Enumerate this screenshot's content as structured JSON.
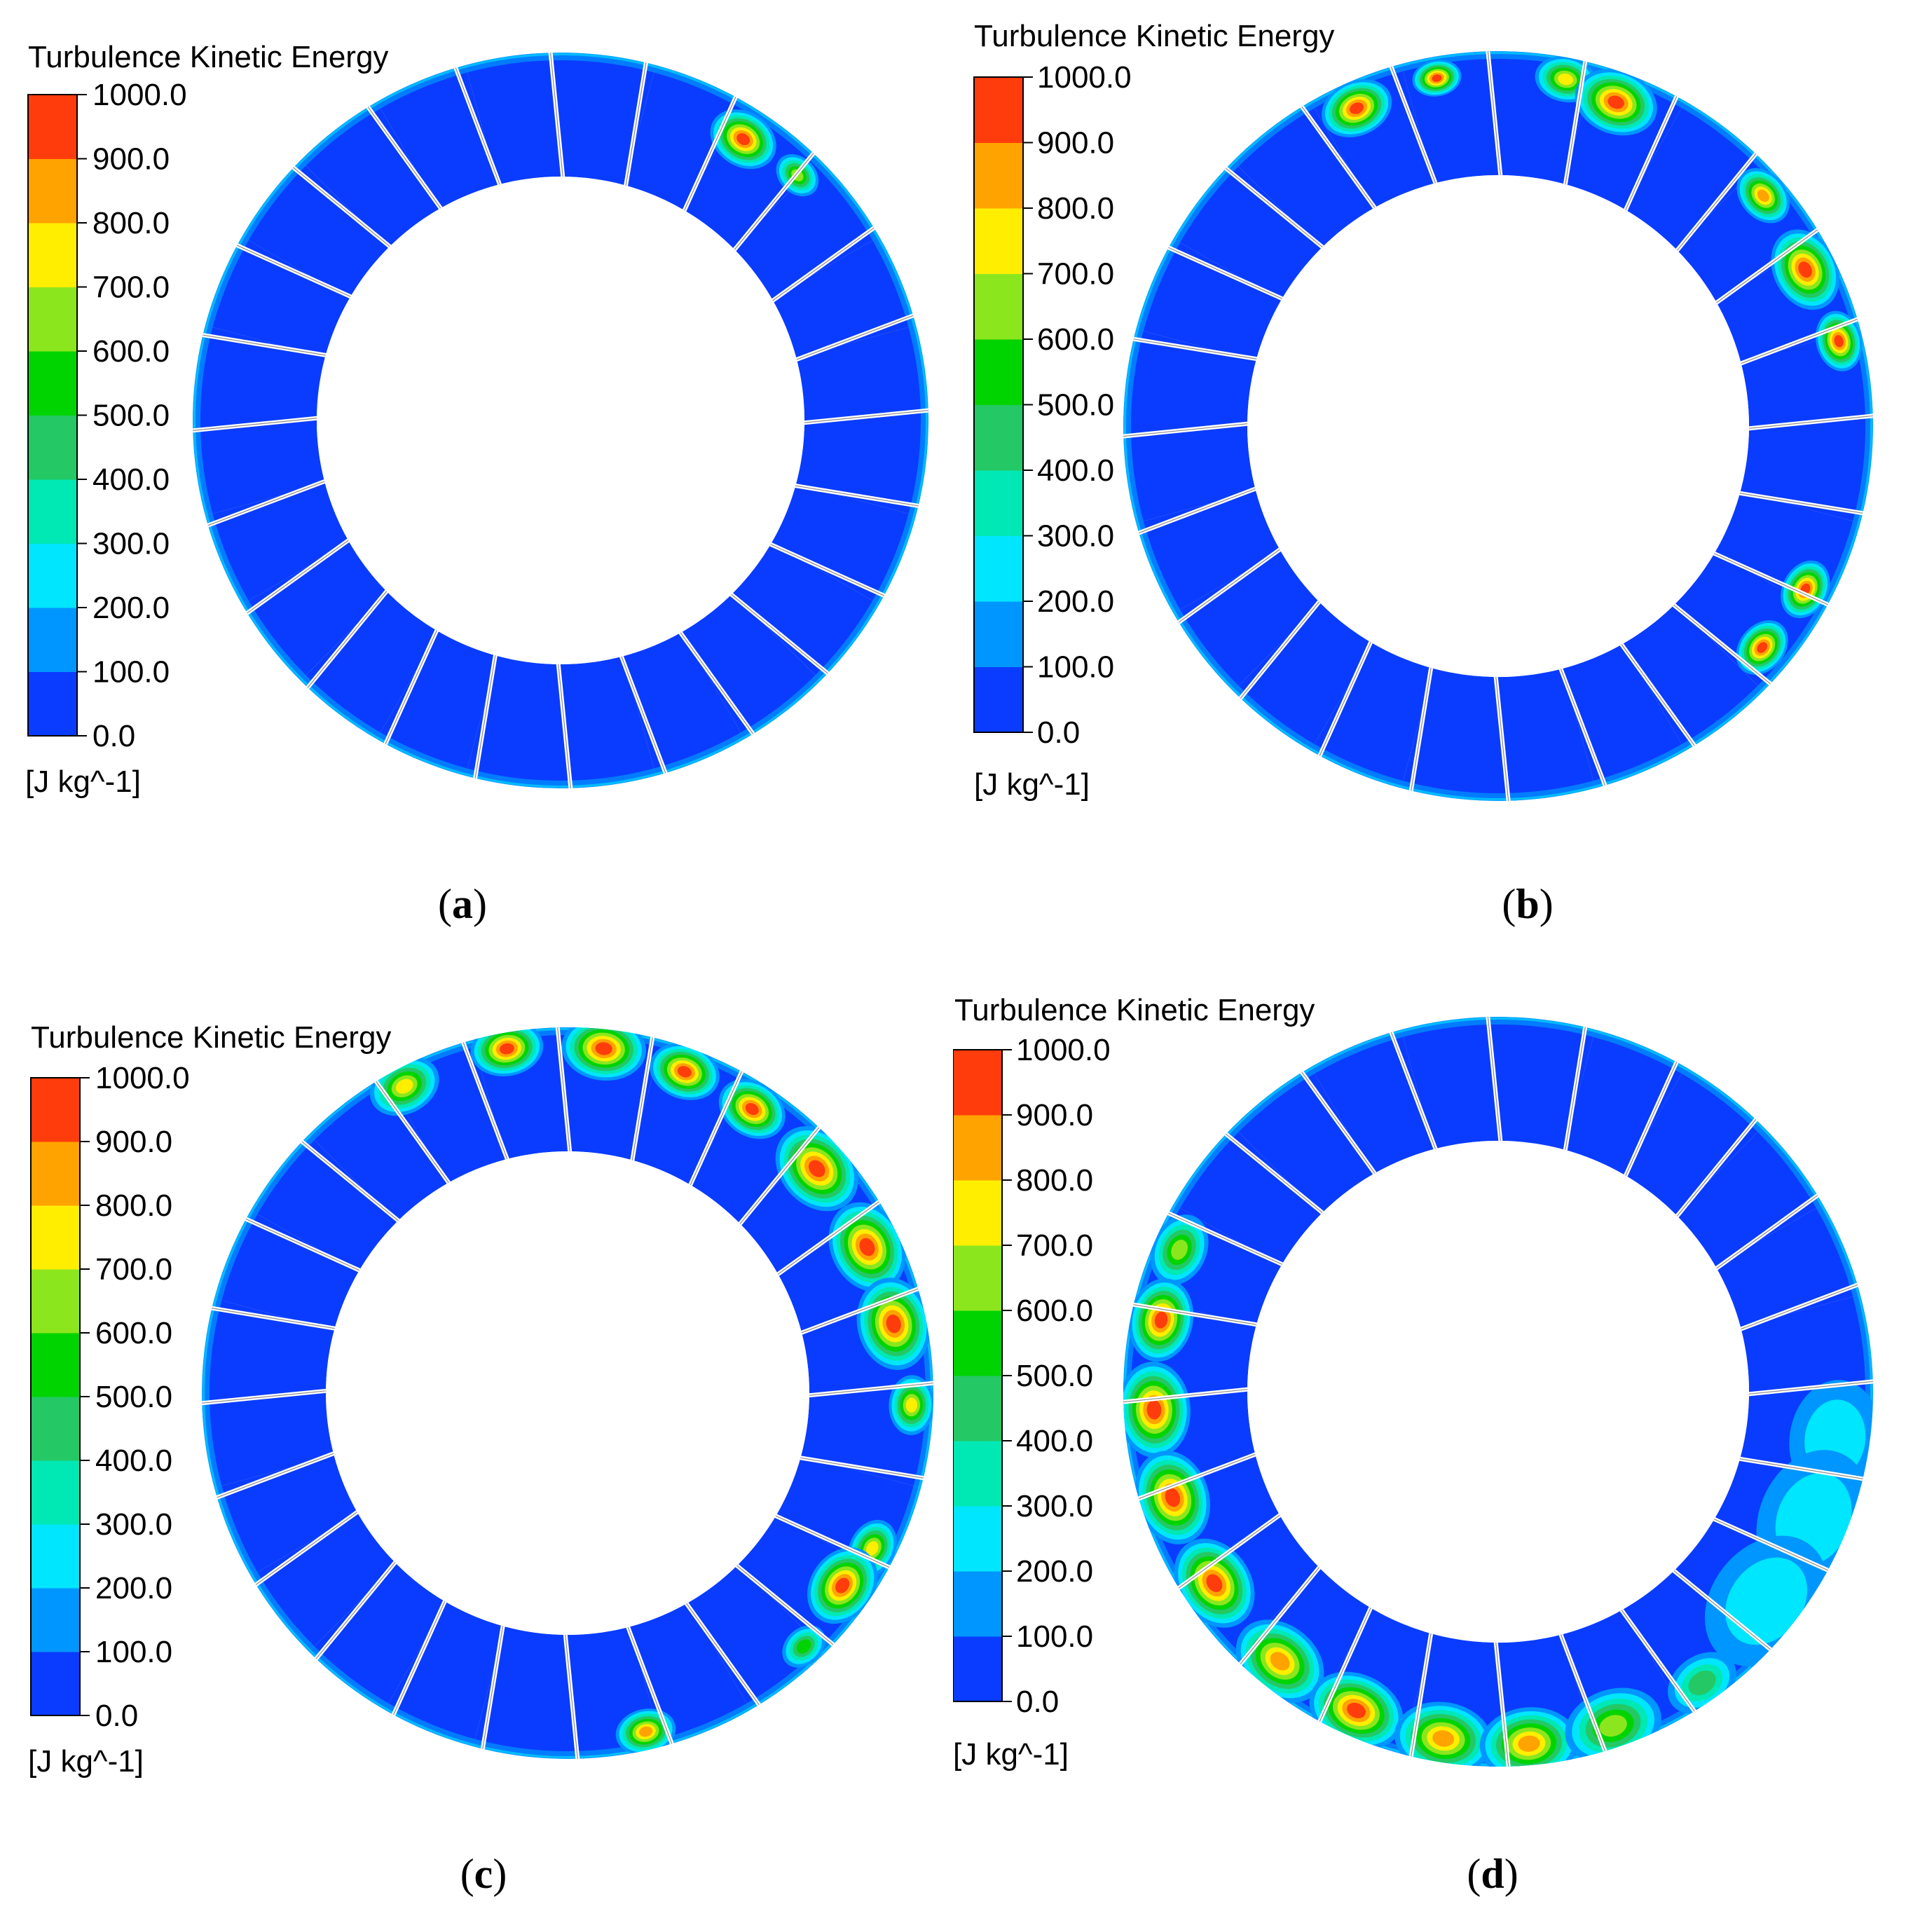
{
  "figure": {
    "colors": {
      "bands": [
        "#0a3cff",
        "#0096ff",
        "#00e6ff",
        "#00e8b4",
        "#24c864",
        "#00d400",
        "#8ce61e",
        "#ffee00",
        "#ffa300",
        "#ff3c0c"
      ],
      "low": "#0a3cff",
      "background": "#ffffff",
      "gap": "#ffffff"
    }
  },
  "chart_data": [
    {
      "type": "heatmap",
      "panel": "a",
      "caption_open": "(",
      "caption_letter": "a",
      "caption_close": ")",
      "title": "Turbulence Kinetic Energy",
      "units": "[J kg^-1]",
      "range": [
        0,
        1000
      ],
      "tick_labels": [
        "1000.0",
        "900.0",
        "800.0",
        "700.0",
        "600.0",
        "500.0",
        "400.0",
        "300.0",
        "200.0",
        "100.0",
        "0.0"
      ],
      "passages": 24,
      "hotspots": [
        {
          "angle_deg": 33,
          "radius_frac": 0.8,
          "peak": 1000,
          "spread_deg": 6
        },
        {
          "angle_deg": 44,
          "radius_frac": 0.85,
          "peak": 650,
          "spread_deg": 4
        }
      ]
    },
    {
      "type": "heatmap",
      "panel": "b",
      "caption_open": "(",
      "caption_letter": "b",
      "caption_close": ")",
      "title": "Turbulence Kinetic Energy",
      "units": "[J kg^-1]",
      "range": [
        0,
        1000
      ],
      "tick_labels": [
        "1000.0",
        "900.0",
        "800.0",
        "700.0",
        "600.0",
        "500.0",
        "400.0",
        "300.0",
        "200.0",
        "100.0",
        "0.0"
      ],
      "passages": 24,
      "hotspots": [
        {
          "angle_deg": -24,
          "radius_frac": 0.85,
          "peak": 1000,
          "spread_deg": 6
        },
        {
          "angle_deg": -10,
          "radius_frac": 0.9,
          "peak": 1000,
          "spread_deg": 4
        },
        {
          "angle_deg": 11,
          "radius_frac": 0.9,
          "peak": 800,
          "spread_deg": 5
        },
        {
          "angle_deg": 20,
          "radius_frac": 0.82,
          "peak": 1000,
          "spread_deg": 7
        },
        {
          "angle_deg": 49,
          "radius_frac": 0.88,
          "peak": 900,
          "spread_deg": 5
        },
        {
          "angle_deg": 63,
          "radius_frac": 0.82,
          "peak": 1000,
          "spread_deg": 7
        },
        {
          "angle_deg": 76,
          "radius_frac": 0.88,
          "peak": 1000,
          "spread_deg": 5
        },
        {
          "angle_deg": 118,
          "radius_frac": 0.85,
          "peak": 1000,
          "spread_deg": 5
        },
        {
          "angle_deg": 130,
          "radius_frac": 0.82,
          "peak": 1000,
          "spread_deg": 5
        }
      ]
    },
    {
      "type": "heatmap",
      "panel": "c",
      "caption_open": "(",
      "caption_letter": "c",
      "caption_close": ")",
      "title": "Turbulence Kinetic Energy",
      "units": "[J kg^-1]",
      "range": [
        0,
        1000
      ],
      "tick_labels": [
        "1000.0",
        "900.0",
        "800.0",
        "700.0",
        "600.0",
        "500.0",
        "400.0",
        "300.0",
        "200.0",
        "100.0",
        "0.0"
      ],
      "passages": 24,
      "hotspots": [
        {
          "angle_deg": -28,
          "radius_frac": 0.93,
          "peak": 800,
          "spread_deg": 6
        },
        {
          "angle_deg": -10,
          "radius_frac": 0.95,
          "peak": 1000,
          "spread_deg": 6
        },
        {
          "angle_deg": 6,
          "radius_frac": 0.92,
          "peak": 1000,
          "spread_deg": 7
        },
        {
          "angle_deg": 20,
          "radius_frac": 0.88,
          "peak": 1000,
          "spread_deg": 6
        },
        {
          "angle_deg": 33,
          "radius_frac": 0.85,
          "peak": 950,
          "spread_deg": 6
        },
        {
          "angle_deg": 48,
          "radius_frac": 0.82,
          "peak": 1000,
          "spread_deg": 8
        },
        {
          "angle_deg": 64,
          "radius_frac": 0.8,
          "peak": 1000,
          "spread_deg": 8
        },
        {
          "angle_deg": 78,
          "radius_frac": 0.8,
          "peak": 1000,
          "spread_deg": 8
        },
        {
          "angle_deg": 92,
          "radius_frac": 0.9,
          "peak": 800,
          "spread_deg": 5
        },
        {
          "angle_deg": 117,
          "radius_frac": 0.88,
          "peak": 800,
          "spread_deg": 5
        },
        {
          "angle_deg": 125,
          "radius_frac": 0.82,
          "peak": 1000,
          "spread_deg": 7
        },
        {
          "angle_deg": 137,
          "radius_frac": 0.92,
          "peak": 600,
          "spread_deg": 4
        },
        {
          "angle_deg": 167,
          "radius_frac": 0.93,
          "peak": 900,
          "spread_deg": 5
        }
      ]
    },
    {
      "type": "heatmap",
      "panel": "d",
      "caption_open": "(",
      "caption_letter": "d",
      "caption_close": ")",
      "title": "Turbulence Kinetic Energy",
      "units": "[J kg^-1]",
      "range": [
        0,
        1000
      ],
      "tick_labels": [
        "1000.0",
        "900.0",
        "800.0",
        "700.0",
        "600.0",
        "500.0",
        "400.0",
        "300.0",
        "200.0",
        "100.0",
        "0.0"
      ],
      "passages": 24,
      "hotspots": [
        {
          "angle_deg": -66,
          "radius_frac": 0.86,
          "peak": 700,
          "spread_deg": 6
        },
        {
          "angle_deg": -78,
          "radius_frac": 0.82,
          "peak": 1000,
          "spread_deg": 7
        },
        {
          "angle_deg": -93,
          "radius_frac": 0.82,
          "peak": 1000,
          "spread_deg": 8
        },
        {
          "angle_deg": -108,
          "radius_frac": 0.8,
          "peak": 1000,
          "spread_deg": 8
        },
        {
          "angle_deg": -124,
          "radius_frac": 0.8,
          "peak": 1000,
          "spread_deg": 8
        },
        {
          "angle_deg": -141,
          "radius_frac": 0.84,
          "peak": 900,
          "spread_deg": 8
        },
        {
          "angle_deg": -156,
          "radius_frac": 0.86,
          "peak": 950,
          "spread_deg": 8
        },
        {
          "angle_deg": -171,
          "radius_frac": 0.88,
          "peak": 900,
          "spread_deg": 8
        },
        {
          "angle_deg": 175,
          "radius_frac": 0.9,
          "peak": 850,
          "spread_deg": 8
        },
        {
          "angle_deg": 161,
          "radius_frac": 0.9,
          "peak": 700,
          "spread_deg": 8
        },
        {
          "angle_deg": 145,
          "radius_frac": 0.92,
          "peak": 450,
          "spread_deg": 6
        },
        {
          "angle_deg": 98,
          "radius_frac": 0.78,
          "peak": 220,
          "spread_deg": 10
        },
        {
          "angle_deg": 112,
          "radius_frac": 0.78,
          "peak": 220,
          "spread_deg": 12
        },
        {
          "angle_deg": 128,
          "radius_frac": 0.78,
          "peak": 220,
          "spread_deg": 12
        }
      ]
    }
  ]
}
